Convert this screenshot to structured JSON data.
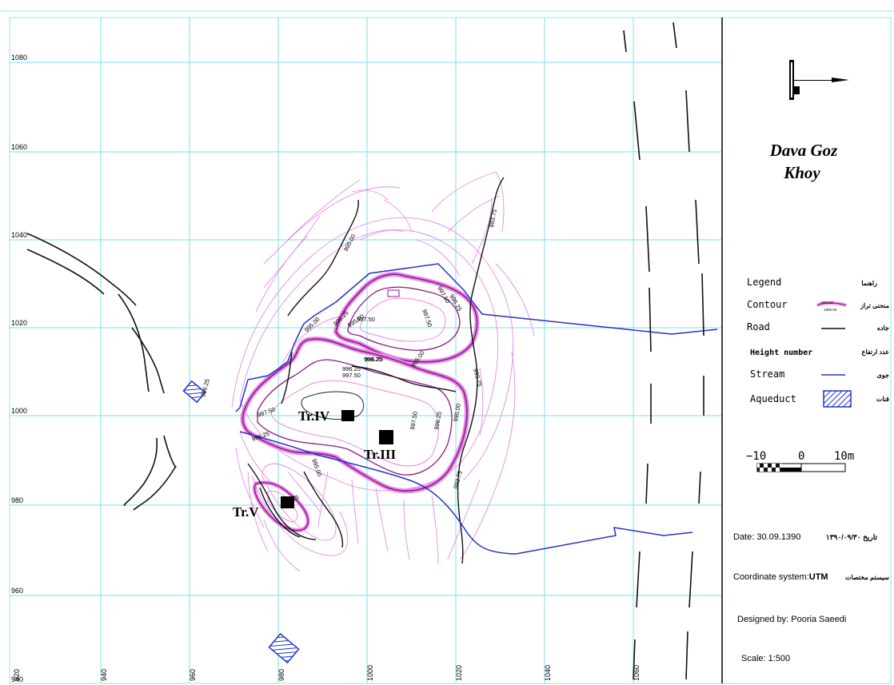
{
  "map": {
    "x_ticks": [
      "940",
      "960",
      "980",
      "1000",
      "1020",
      "1040",
      "1060"
    ],
    "y_ticks": [
      "1080",
      "1060",
      "1040",
      "1020",
      "1000",
      "980",
      "960"
    ],
    "corner_labels": {
      "y_bottom": "940",
      "x_left": "920"
    },
    "contour_labels": [
      "995.00",
      "993.75",
      "996.25",
      "997.50",
      "995.00",
      "996.25",
      "997.50",
      "997.50",
      "996.25",
      "997.50",
      "996.25",
      "997.50",
      "996.25",
      "995.00",
      "993.75",
      "993.75",
      "995.00",
      "995.00",
      "996.25",
      "996.25",
      "995.00",
      "996.25",
      "996.25",
      "997.50"
    ],
    "trenches": [
      "Tr.IV",
      "Tr.III",
      "Tr.V"
    ]
  },
  "panel": {
    "title_line1": "Dava Goz",
    "title_line2": "Khoy",
    "legend_title": "Legend",
    "legend_title_fa": "راهنما",
    "legend_items": [
      {
        "label": "Contour",
        "label_fa": "منحنی تراز",
        "sample_a": "1902.50",
        "sample_b": "1905.00"
      },
      {
        "label": "Road",
        "label_fa": "جاده"
      },
      {
        "label": "Height number",
        "label_fa": "عدد ارتفاع"
      },
      {
        "label": "Stream",
        "label_fa": "جوی"
      },
      {
        "label": "Aqueduct",
        "label_fa": "قنات"
      }
    ],
    "scale_bar": {
      "left": "−10",
      "mid": "0",
      "right": "10m"
    },
    "date": "Date: 30.09.1390",
    "date_fa": "تاریخ ۱۳۹۰/۰۹/۳۰",
    "coord_label": "Coordinate system:",
    "coord_value": "UTM",
    "coord_fa": "سیستم مختصات",
    "designed_by": "Designed by: Pooria Saeedi",
    "scale": "Scale: 1:500"
  },
  "colors": {
    "grid": "#8fe6f0",
    "contour_light": "#e58be5",
    "contour_bold": "#8b1a8b",
    "stream": "#2233cc",
    "road": "#111111"
  }
}
